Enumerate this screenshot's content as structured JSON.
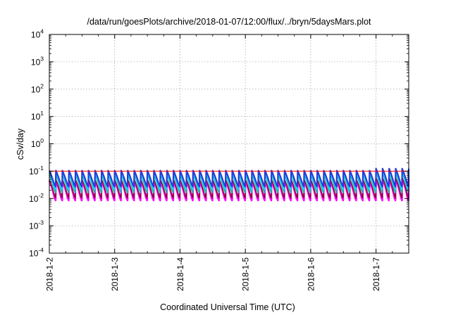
{
  "chart_data": {
    "type": "line",
    "title": "/data/run/goesPlots/archive/2018-01-07/12:00/flux/../bryn/5daysMars.plot",
    "xlabel": "Coordinated Universal Time (UTC)",
    "ylabel": "cSv/day",
    "yscale": "log",
    "ylim": [
      0.0001,
      10000
    ],
    "xlim": [
      "2018-01-02",
      "2018-01-07 12:00"
    ],
    "grid": true,
    "legend": "none",
    "x_ticks": [
      "2018-1-2",
      "2018-1-3",
      "2018-1-4",
      "2018-1-5",
      "2018-1-6",
      "2018-1-7"
    ],
    "y_ticks": [
      {
        "base": "10",
        "exp": "-4",
        "value": 0.0001
      },
      {
        "base": "10",
        "exp": "-3",
        "value": 0.001
      },
      {
        "base": "10",
        "exp": "-2",
        "value": 0.01
      },
      {
        "base": "10",
        "exp": "-1",
        "value": 0.1
      },
      {
        "base": "10",
        "exp": "0",
        "value": 1
      },
      {
        "base": "10",
        "exp": "1",
        "value": 10
      },
      {
        "base": "10",
        "exp": "2",
        "value": 100
      },
      {
        "base": "10",
        "exp": "3",
        "value": 1000
      },
      {
        "base": "10",
        "exp": "4",
        "value": 10000
      }
    ],
    "cycles_per_day": 10,
    "series": [
      {
        "color": "#ff00ff",
        "peak": 0.045,
        "trough": 0.0085,
        "width": 2.6
      },
      {
        "color": "#7a1020",
        "peak": 0.05,
        "trough": 0.0105,
        "width": 1.4
      },
      {
        "color": "#20b2aa",
        "peak": 0.075,
        "trough": 0.0165,
        "width": 1.8
      },
      {
        "color": "#00e5ff",
        "peak": 0.085,
        "trough": 0.021,
        "width": 1.6
      },
      {
        "color": "#2a3bd6",
        "peak": 0.105,
        "trough": 0.027,
        "width": 2.2
      },
      {
        "color": "#ff0000",
        "peak": 0.1,
        "trough": 0.1,
        "width": 1.0
      }
    ]
  }
}
